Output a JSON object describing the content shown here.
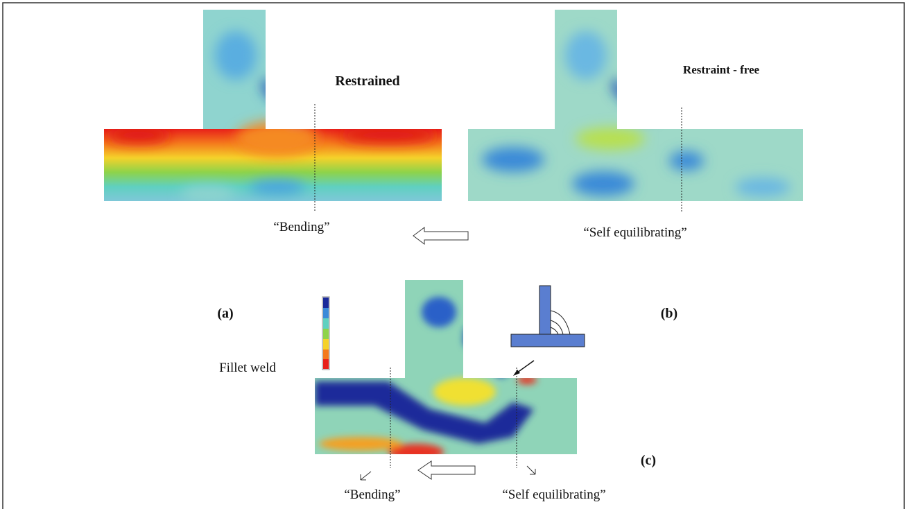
{
  "panel_a": {
    "title": "Restrained",
    "caption": "“Bending”",
    "tag": "(a)"
  },
  "panel_b": {
    "title": "Restraint - free",
    "caption": "“Self equilibrating”",
    "tag": "(b)"
  },
  "panel_c": {
    "title": "Fillet weld",
    "tag": "(c)",
    "captions": [
      "“Bending”",
      "“Self  equilibrating”"
    ]
  }
}
